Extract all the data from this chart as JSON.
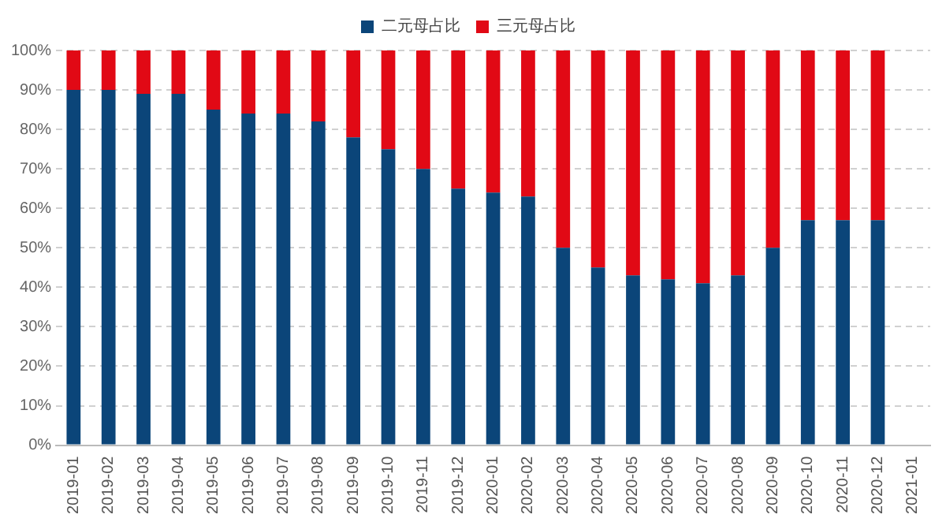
{
  "chart_data": {
    "type": "bar",
    "stacked": true,
    "categories": [
      "2019-01",
      "2019-02",
      "2019-03",
      "2019-04",
      "2019-05",
      "2019-06",
      "2019-07",
      "2019-08",
      "2019-09",
      "2019-10",
      "2019-11",
      "2019-12",
      "2020-01",
      "2020-02",
      "2020-03",
      "2020-04",
      "2020-05",
      "2020-06",
      "2020-07",
      "2020-08",
      "2020-09",
      "2020-10",
      "2020-11",
      "2020-12",
      "2021-01"
    ],
    "series": [
      {
        "name": "二元母占比",
        "color": "#0b4579",
        "values": [
          90,
          90,
          89,
          89,
          85,
          84,
          84,
          82,
          78,
          75,
          70,
          65,
          64,
          63,
          50,
          45,
          43,
          42,
          41,
          43,
          50,
          57,
          57,
          57,
          null
        ]
      },
      {
        "name": "三元母占比",
        "color": "#e10915",
        "values": [
          10,
          10,
          11,
          11,
          15,
          16,
          16,
          18,
          22,
          25,
          30,
          35,
          36,
          37,
          50,
          55,
          57,
          58,
          59,
          57,
          50,
          43,
          43,
          43,
          null
        ]
      }
    ],
    "ylim": [
      0,
      100
    ],
    "yticks": [
      {
        "value": 0,
        "label": "0%"
      },
      {
        "value": 10,
        "label": "10%"
      },
      {
        "value": 20,
        "label": "20%"
      },
      {
        "value": 30,
        "label": "30%"
      },
      {
        "value": 40,
        "label": "40%"
      },
      {
        "value": 50,
        "label": "50%"
      },
      {
        "value": 60,
        "label": "60%"
      },
      {
        "value": 70,
        "label": "70%"
      },
      {
        "value": 80,
        "label": "80%"
      },
      {
        "value": 90,
        "label": "90%"
      },
      {
        "value": 100,
        "label": "100%"
      }
    ],
    "grid": "y",
    "legend": "top"
  }
}
